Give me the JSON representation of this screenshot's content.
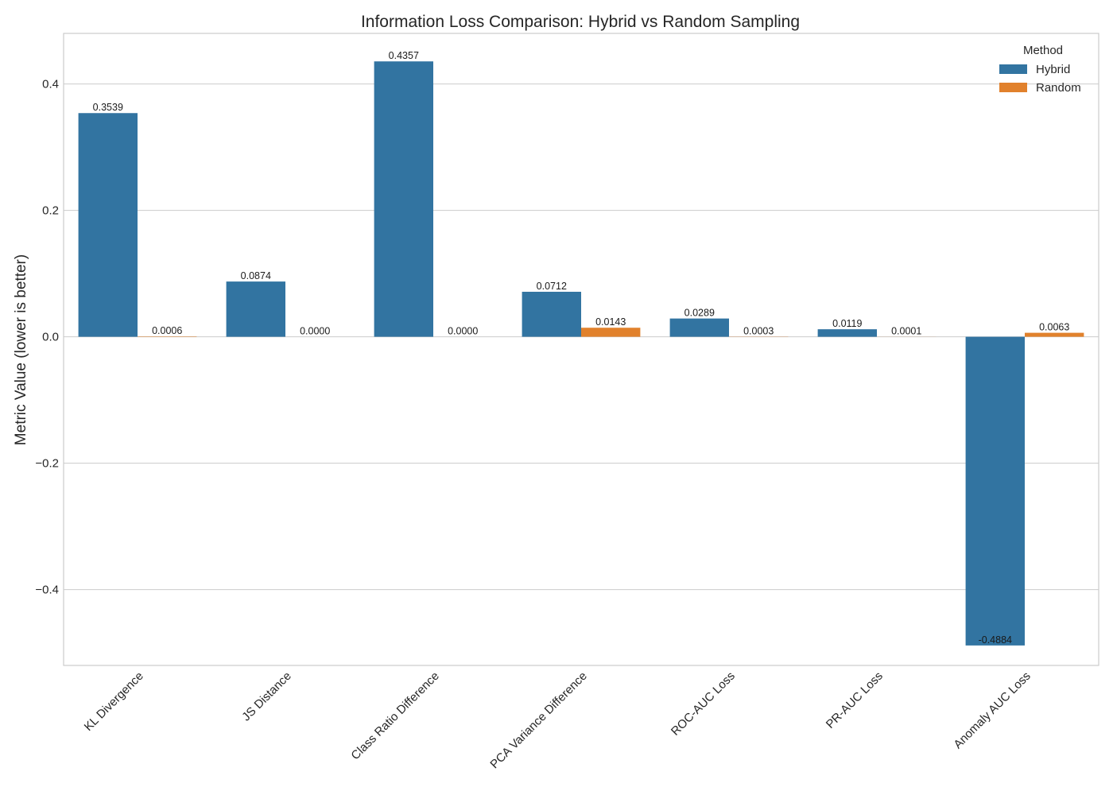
{
  "chart_data": {
    "type": "bar",
    "title": "Information Loss Comparison: Hybrid vs Random Sampling",
    "xlabel": "",
    "ylabel": "Metric Value (lower is better)",
    "ylim": [
      -0.52,
      0.48
    ],
    "yticks": [
      -0.4,
      -0.2,
      0.0,
      0.2,
      0.4
    ],
    "ytick_labels": [
      "−0.4",
      "−0.2",
      "0.0",
      "0.2",
      "0.4"
    ],
    "categories": [
      "KL Divergence",
      "JS Distance",
      "Class Ratio Difference",
      "PCA Variance Difference",
      "ROC-AUC Loss",
      "PR-AUC Loss",
      "Anomaly AUC Loss"
    ],
    "series": [
      {
        "name": "Hybrid",
        "color": "#3274a1",
        "values": [
          0.3539,
          0.0874,
          0.4357,
          0.0712,
          0.0289,
          0.0119,
          -0.4884
        ],
        "labels": [
          "0.3539",
          "0.0874",
          "0.4357",
          "0.0712",
          "0.0289",
          "0.0119",
          "-0.4884"
        ]
      },
      {
        "name": "Random",
        "color": "#e1812c",
        "values": [
          0.0006,
          0.0,
          0.0,
          0.0143,
          0.0003,
          0.0001,
          0.0063
        ],
        "labels": [
          "0.0006",
          "0.0000",
          "0.0000",
          "0.0143",
          "0.0003",
          "0.0001",
          "0.0063"
        ]
      }
    ],
    "legend": {
      "title": "Method",
      "position": "top-right"
    },
    "grid": true
  }
}
